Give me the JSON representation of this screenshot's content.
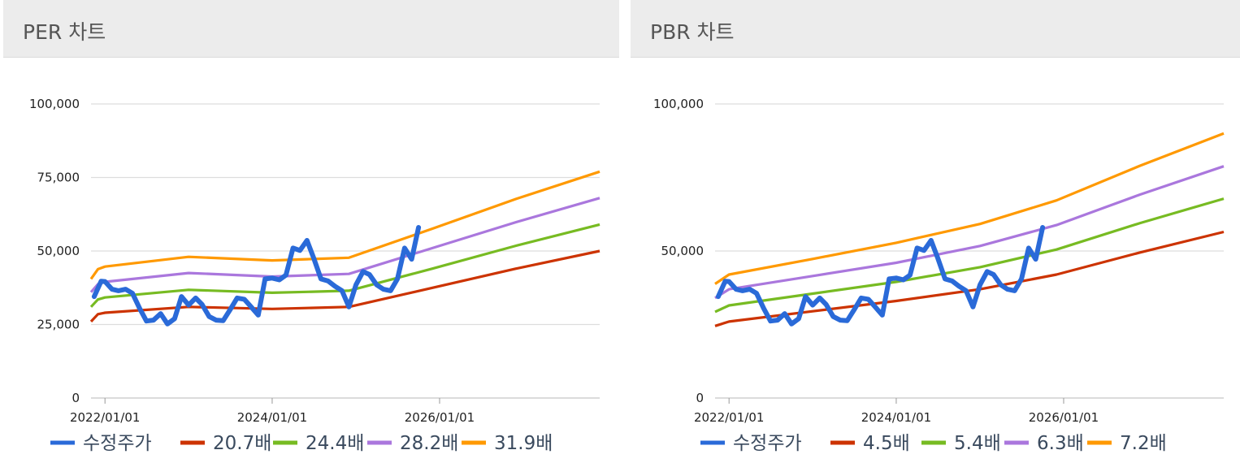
{
  "panels": [
    {
      "title": "PER 차트",
      "chart_data": {
        "type": "line",
        "x": [
          "2021/11/01",
          "2021/12/01",
          "2022/01/01",
          "2023/01/01",
          "2024/01/01",
          "2024/06/01",
          "2024/12/01",
          "2025/12/01",
          "2026/12/01",
          "2027/12/01"
        ],
        "x_ticks": [
          "2022/01/01",
          "2024/01/01",
          "2026/01/01"
        ],
        "y_ticks": [
          "0",
          "25,000",
          "50,000",
          "75,000",
          "100,000"
        ],
        "ylim": [
          0,
          100000
        ],
        "grid": true,
        "legend_position": "bottom",
        "series": [
          {
            "name": "20.7배",
            "color": "#cc3300",
            "values": [
              26000,
              28500,
              29000,
              31000,
              30300,
              30600,
              31000,
              37500,
              44000,
              50000
            ]
          },
          {
            "name": "24.4배",
            "color": "#77bb22",
            "values": [
              31000,
              33500,
              34200,
              36800,
              35800,
              36100,
              36500,
              44000,
              51800,
              59000
            ]
          },
          {
            "name": "28.2배",
            "color": "#aa77dd",
            "values": [
              36000,
              38700,
              39500,
              42500,
              41300,
              41700,
              42200,
              51000,
              59800,
              68000
            ]
          },
          {
            "name": "31.9배",
            "color": "#ff9900",
            "values": [
              40500,
              43800,
              44700,
              48000,
              46800,
              47200,
              47700,
              57600,
              67700,
              77000
            ]
          }
        ],
        "price_series": {
          "name": "수정주가",
          "color": "#2a6ad8",
          "x": [
            "2021/11/15",
            "2021/12/15",
            "2022/01/01",
            "2022/02/01",
            "2022/03/01",
            "2022/04/01",
            "2022/05/01",
            "2022/06/01",
            "2022/07/01",
            "2022/08/01",
            "2022/09/01",
            "2022/10/01",
            "2022/11/01",
            "2022/12/01",
            "2023/01/01",
            "2023/02/01",
            "2023/03/01",
            "2023/04/01",
            "2023/05/01",
            "2023/06/01",
            "2023/07/01",
            "2023/08/01",
            "2023/09/01",
            "2023/10/01",
            "2023/11/01",
            "2023/12/01",
            "2024/01/01",
            "2024/02/01",
            "2024/03/01",
            "2024/04/01",
            "2024/05/01",
            "2024/06/01",
            "2024/07/01",
            "2024/08/01",
            "2024/09/01",
            "2024/10/01",
            "2024/11/01",
            "2024/12/01",
            "2025/01/01",
            "2025/02/01",
            "2025/03/01",
            "2025/04/01",
            "2025/05/01",
            "2025/06/01",
            "2025/07/01",
            "2025/08/01",
            "2025/09/01",
            "2025/10/01"
          ],
          "values": [
            34500,
            39700,
            39600,
            37000,
            36500,
            37000,
            35600,
            30500,
            26200,
            26500,
            28700,
            25200,
            27000,
            34500,
            31600,
            34000,
            31800,
            27700,
            26500,
            26300,
            30000,
            34000,
            33600,
            31000,
            28200,
            40500,
            40800,
            40200,
            41800,
            51000,
            50200,
            53600,
            47500,
            40500,
            39800,
            38000,
            36500,
            31000,
            38500,
            43000,
            42000,
            38500,
            37000,
            36500,
            40500,
            51000,
            47200,
            58000
          ]
        }
      }
    },
    {
      "title": "PBR 차트",
      "chart_data": {
        "type": "line",
        "x": [
          "2021/11/01",
          "2022/01/01",
          "2023/01/01",
          "2024/01/01",
          "2025/01/01",
          "2025/12/01",
          "2026/12/01",
          "2027/12/01"
        ],
        "x_ticks": [
          "2022/01/01",
          "2024/01/01",
          "2026/01/01"
        ],
        "y_ticks": [
          "0",
          "50,000",
          "100,000"
        ],
        "ylim": [
          0,
          100000
        ],
        "grid": true,
        "legend_position": "bottom",
        "series": [
          {
            "name": "4.5배",
            "color": "#cc3300",
            "values": [
              24500,
              26000,
              29500,
              33000,
              37000,
              42000,
              49500,
              56500
            ]
          },
          {
            "name": "5.4배",
            "color": "#77bb22",
            "values": [
              29300,
              31500,
              35500,
              39500,
              44500,
              50500,
              59500,
              67800
            ]
          },
          {
            "name": "6.3배",
            "color": "#aa77dd",
            "values": [
              34000,
              37000,
              41500,
              46000,
              51700,
              58800,
              69200,
              78800
            ]
          },
          {
            "name": "7.2배",
            "color": "#ff9900",
            "values": [
              38800,
              42000,
              47300,
              52800,
              59200,
              67200,
              79000,
              90000
            ]
          }
        ],
        "price_series": {
          "name": "수정주가",
          "color": "#2a6ad8",
          "x": [
            "2021/11/15",
            "2021/12/15",
            "2022/01/01",
            "2022/02/01",
            "2022/03/01",
            "2022/04/01",
            "2022/05/01",
            "2022/06/01",
            "2022/07/01",
            "2022/08/01",
            "2022/09/01",
            "2022/10/01",
            "2022/11/01",
            "2022/12/01",
            "2023/01/01",
            "2023/02/01",
            "2023/03/01",
            "2023/04/01",
            "2023/05/01",
            "2023/06/01",
            "2023/07/01",
            "2023/08/01",
            "2023/09/01",
            "2023/10/01",
            "2023/11/01",
            "2023/12/01",
            "2024/01/01",
            "2024/02/01",
            "2024/03/01",
            "2024/04/01",
            "2024/05/01",
            "2024/06/01",
            "2024/07/01",
            "2024/08/01",
            "2024/09/01",
            "2024/10/01",
            "2024/11/01",
            "2024/12/01",
            "2025/01/01",
            "2025/02/01",
            "2025/03/01",
            "2025/04/01",
            "2025/05/01",
            "2025/06/01",
            "2025/07/01",
            "2025/08/01",
            "2025/09/01",
            "2025/10/01"
          ],
          "values": [
            34500,
            39700,
            39600,
            37000,
            36500,
            37000,
            35600,
            30500,
            26200,
            26500,
            28700,
            25200,
            27000,
            34500,
            31600,
            34000,
            31800,
            27700,
            26500,
            26300,
            30000,
            34000,
            33600,
            31000,
            28200,
            40500,
            40800,
            40200,
            41800,
            51000,
            50200,
            53600,
            47500,
            40500,
            39800,
            38000,
            36500,
            31000,
            38500,
            43000,
            42000,
            38500,
            37000,
            36500,
            40500,
            51000,
            47200,
            58000
          ]
        }
      }
    }
  ]
}
